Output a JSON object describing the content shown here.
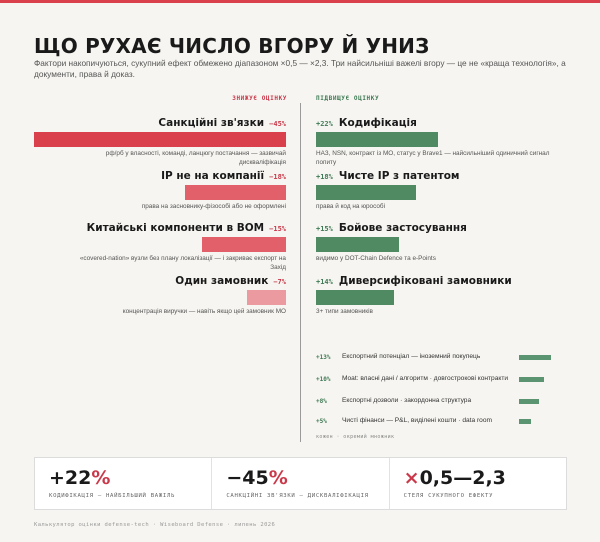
{
  "title": "ЩО РУХАЄ ЧИСЛО ВГОРУ Й УНИЗ",
  "subtitle": "Фактори накопичуються, сукупний ефект обмежено діапазоном ×0,5 — ×2,3. Три найсильніші важелі вгору — це не «краща технологія», а документи, права й доказ.",
  "colors": {
    "accent": "#d9404b",
    "negative": "#c9394a",
    "positive": "#4f8a63"
  },
  "chart_data": {
    "type": "bar",
    "left_label": "ЗНИЖУЄ ОЦІНКУ",
    "right_label": "ПІДВИЩУЄ ОЦІНКУ",
    "negative": [
      {
        "label": "Санкційні зв'язки",
        "pct": "−45%",
        "value": -45,
        "desc": "рф/рб у власності, команді, ланцюгу постачання — зазвичай дискваліфікація"
      },
      {
        "label": "IP не на компанії",
        "pct": "−18%",
        "value": -18,
        "desc": "права на засновнику-фізособі або не оформлені"
      },
      {
        "label": "Китайські компоненти в BOM",
        "pct": "−15%",
        "value": -15,
        "desc": "«covered-nation» вузли без плану локалізації — і закриває експорт на Захід"
      },
      {
        "label": "Один замовник",
        "pct": "−7%",
        "value": -7,
        "desc": "концентрація виручки — навіть якщо цей замовник МО"
      }
    ],
    "positive": [
      {
        "label": "Кодифікація",
        "pct": "+22%",
        "value": 22,
        "desc": "НАЗ, NSN, контракт із МО, статус у Brave1 — найсильніший одиничний сигнал попиту"
      },
      {
        "label": "Чисте IP з патентом",
        "pct": "+18%",
        "value": 18,
        "desc": "права й код на юрособі"
      },
      {
        "label": "Бойове застосування",
        "pct": "+15%",
        "value": 15,
        "desc": "видимо у DOT-Chain Defence та e-Points"
      },
      {
        "label": "Диверсифіковані замовники",
        "pct": "+14%",
        "value": 14,
        "desc": "3+ типи замовників"
      }
    ],
    "positive_minor": [
      {
        "label": "Експортний потенціал — іноземний покупець",
        "pct": "+13%",
        "value": 13
      },
      {
        "label": "Moat: власні дані / алгоритм · довгострокові контракти",
        "pct": "+10%",
        "value": 10
      },
      {
        "label": "Експортні дозволи · закордонна структура",
        "pct": "+8%",
        "value": 8
      },
      {
        "label": "Чисті фінанси — P&L, виділені кошти · data room",
        "pct": "+5%",
        "value": 5
      }
    ],
    "minor_note": "кожен · окремий множник"
  },
  "stats": [
    {
      "value": "+22",
      "suffix": "%",
      "caption": "КОДИФІКАЦІЯ — НАЙБІЛЬШИЙ ВАЖІЛЬ"
    },
    {
      "value": "−45",
      "suffix": "%",
      "caption": "САНКЦІЙНІ ЗВ'ЯЗКИ — ДИСКВАЛІФІКАЦІЯ"
    },
    {
      "prefix": "×",
      "value": "0,5—2,3",
      "caption": "СТЕЛЯ СУКУПНОГО ЕФЕКТУ"
    }
  ],
  "footer": "Калькулятор оцінки defense-tech · Wiseboard Defense · липень 2026"
}
